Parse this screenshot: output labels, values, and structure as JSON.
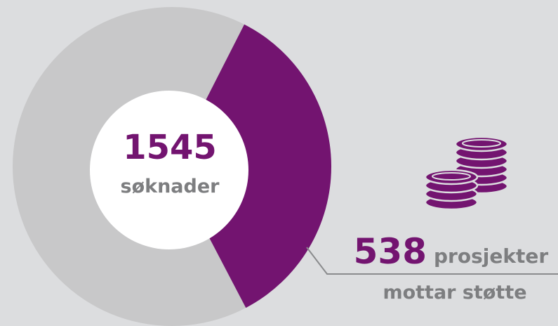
{
  "chart_data": {
    "type": "donut",
    "total": 1545,
    "total_label": "søknader",
    "total_color": "#c8c8c9",
    "highlight": {
      "value": 538,
      "label": "prosjekter",
      "sublabel": "mottar støtte",
      "color": "#731470"
    }
  }
}
